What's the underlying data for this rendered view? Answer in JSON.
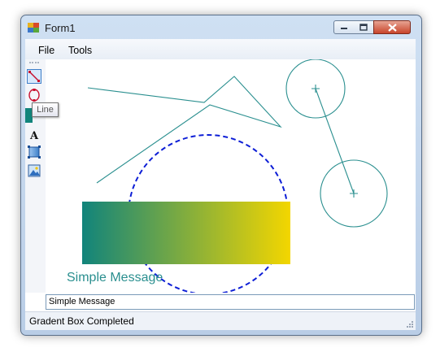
{
  "window": {
    "title": "Form1"
  },
  "menu": {
    "items": [
      "File",
      "Tools"
    ]
  },
  "toolbar": {
    "tools": [
      {
        "name": "line-tool-icon",
        "selected": true
      },
      {
        "name": "ellipse-tool-icon",
        "selected": false
      },
      {
        "name": "fill-tool-icon",
        "selected": false
      },
      {
        "name": "text-tool-icon",
        "selected": false
      },
      {
        "name": "gradient-box-tool-icon",
        "selected": false
      },
      {
        "name": "image-tool-icon",
        "selected": false
      }
    ],
    "text_tool_glyph": "A",
    "tooltip": "Line"
  },
  "canvas": {
    "message": "Simple Message",
    "gradient": {
      "start": "#11847b",
      "end": "#f3d600"
    },
    "shape_color": "#2a8f8f",
    "dashed_circle_color": "#0d1ed6"
  },
  "input": {
    "value": "Simple Message"
  },
  "status": {
    "text": "Gradent Box Completed"
  }
}
